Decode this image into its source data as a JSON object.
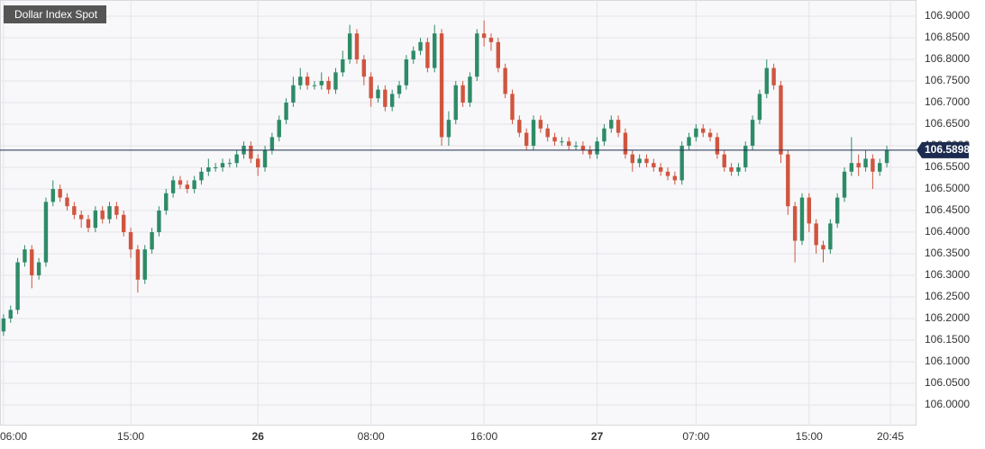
{
  "chart_data": {
    "type": "candlestick",
    "series": [
      {
        "name": "Dollar Index Spot",
        "up_color": "#2e8b68",
        "down_color": "#d0553f",
        "open": [
          106.17,
          106.2,
          106.22,
          106.33,
          106.36,
          106.3,
          106.33,
          106.47,
          106.5,
          106.48,
          106.46,
          106.44,
          106.43,
          106.41,
          106.45,
          106.43,
          106.46,
          106.44,
          106.4,
          106.36,
          106.29,
          106.36,
          106.4,
          106.45,
          106.49,
          106.52,
          106.51,
          106.5,
          106.52,
          106.54,
          106.55,
          106.55,
          106.56,
          106.56,
          106.58,
          106.6,
          106.57,
          106.55,
          106.59,
          106.62,
          106.66,
          106.7,
          106.74,
          106.76,
          106.74,
          106.74,
          106.75,
          106.73,
          106.77,
          106.8,
          106.86,
          106.8,
          106.76,
          106.71,
          106.73,
          106.69,
          106.72,
          106.74,
          106.8,
          106.82,
          106.84,
          106.78,
          106.86,
          106.62,
          106.66,
          106.74,
          106.7,
          106.76,
          106.86,
          106.85,
          106.84,
          106.78,
          106.72,
          106.66,
          106.63,
          106.6,
          106.66,
          106.64,
          106.62,
          106.61,
          106.61,
          106.6,
          106.6,
          106.59,
          106.58,
          106.61,
          106.64,
          106.66,
          106.63,
          106.58,
          106.56,
          106.57,
          106.56,
          106.55,
          106.54,
          106.53,
          106.52,
          106.6,
          106.62,
          106.64,
          106.63,
          106.62,
          106.58,
          106.55,
          106.54,
          106.55,
          106.6,
          106.66,
          106.72,
          106.78,
          106.74,
          106.58,
          106.46,
          106.38,
          106.48,
          106.42,
          106.37,
          106.36,
          106.42,
          106.48,
          106.54,
          106.56,
          106.55,
          106.57,
          106.54,
          106.56
        ],
        "high": [
          106.21,
          106.23,
          106.34,
          106.37,
          106.37,
          106.34,
          106.48,
          106.52,
          106.51,
          106.49,
          106.47,
          106.45,
          106.44,
          106.46,
          106.46,
          106.47,
          106.47,
          106.45,
          106.41,
          106.37,
          106.37,
          106.41,
          106.46,
          106.5,
          106.53,
          106.53,
          106.52,
          106.53,
          106.55,
          106.57,
          106.56,
          106.57,
          106.57,
          106.59,
          106.61,
          106.61,
          106.58,
          106.6,
          106.63,
          106.67,
          106.71,
          106.76,
          106.78,
          106.77,
          106.75,
          106.77,
          106.76,
          106.78,
          106.82,
          106.88,
          106.87,
          106.81,
          106.77,
          106.74,
          106.74,
          106.73,
          106.75,
          106.81,
          106.83,
          106.85,
          106.85,
          106.88,
          106.87,
          106.68,
          106.75,
          106.75,
          106.77,
          106.87,
          106.89,
          106.86,
          106.85,
          106.79,
          106.73,
          106.67,
          106.64,
          106.67,
          106.67,
          106.65,
          106.63,
          106.62,
          106.62,
          106.61,
          106.61,
          106.6,
          106.62,
          106.65,
          106.67,
          106.67,
          106.64,
          106.59,
          106.58,
          106.58,
          106.57,
          106.56,
          106.55,
          106.54,
          106.61,
          106.63,
          106.65,
          106.65,
          106.64,
          106.63,
          106.59,
          106.56,
          106.56,
          106.61,
          106.67,
          106.73,
          106.8,
          106.79,
          106.75,
          106.59,
          106.47,
          106.49,
          106.49,
          106.43,
          106.38,
          106.43,
          106.49,
          106.55,
          106.62,
          106.58,
          106.59,
          106.58,
          106.57,
          106.6
        ],
        "low": [
          106.16,
          106.19,
          106.21,
          106.32,
          106.27,
          106.29,
          106.32,
          106.46,
          106.47,
          106.45,
          106.43,
          106.41,
          106.4,
          106.4,
          106.42,
          106.42,
          106.43,
          106.39,
          106.34,
          106.26,
          106.28,
          106.35,
          106.39,
          106.44,
          106.48,
          106.5,
          106.49,
          106.49,
          106.51,
          106.53,
          106.54,
          106.54,
          106.55,
          106.55,
          106.57,
          106.56,
          106.53,
          106.54,
          106.58,
          106.61,
          106.65,
          106.69,
          106.73,
          106.73,
          106.73,
          106.73,
          106.72,
          106.72,
          106.76,
          106.79,
          106.79,
          106.74,
          106.69,
          106.7,
          106.68,
          106.68,
          106.71,
          106.73,
          106.79,
          106.81,
          106.77,
          106.77,
          106.6,
          106.6,
          106.65,
          106.69,
          106.69,
          106.75,
          106.83,
          106.82,
          106.77,
          106.71,
          106.65,
          106.62,
          106.59,
          106.59,
          106.63,
          106.61,
          106.6,
          106.6,
          106.59,
          106.59,
          106.58,
          106.57,
          106.57,
          106.6,
          106.63,
          106.62,
          106.57,
          106.54,
          106.55,
          106.55,
          106.54,
          106.53,
          106.52,
          106.51,
          106.51,
          106.59,
          106.61,
          106.62,
          106.61,
          106.57,
          106.54,
          106.53,
          106.53,
          106.54,
          106.59,
          106.65,
          106.71,
          106.73,
          106.56,
          106.44,
          106.33,
          106.37,
          106.4,
          106.35,
          106.33,
          106.35,
          106.41,
          106.47,
          106.53,
          106.53,
          106.54,
          106.5,
          106.53,
          106.55
        ],
        "close": [
          106.2,
          106.22,
          106.33,
          106.36,
          106.3,
          106.33,
          106.47,
          106.5,
          106.48,
          106.46,
          106.44,
          106.43,
          106.41,
          106.45,
          106.43,
          106.46,
          106.44,
          106.4,
          106.36,
          106.29,
          106.36,
          106.4,
          106.45,
          106.49,
          106.52,
          106.51,
          106.5,
          106.52,
          106.54,
          106.55,
          106.55,
          106.56,
          106.56,
          106.58,
          106.6,
          106.57,
          106.55,
          106.59,
          106.62,
          106.66,
          106.7,
          106.74,
          106.76,
          106.74,
          106.74,
          106.75,
          106.73,
          106.77,
          106.8,
          106.86,
          106.8,
          106.76,
          106.71,
          106.73,
          106.69,
          106.72,
          106.74,
          106.8,
          106.82,
          106.84,
          106.78,
          106.86,
          106.62,
          106.66,
          106.74,
          106.7,
          106.76,
          106.86,
          106.85,
          106.84,
          106.78,
          106.72,
          106.66,
          106.63,
          106.6,
          106.66,
          106.64,
          106.62,
          106.61,
          106.61,
          106.6,
          106.6,
          106.59,
          106.58,
          106.61,
          106.64,
          106.66,
          106.63,
          106.58,
          106.56,
          106.57,
          106.56,
          106.55,
          106.54,
          106.53,
          106.52,
          106.6,
          106.62,
          106.64,
          106.63,
          106.62,
          106.58,
          106.55,
          106.54,
          106.55,
          106.6,
          106.66,
          106.72,
          106.78,
          106.74,
          106.58,
          106.46,
          106.38,
          106.48,
          106.42,
          106.37,
          106.36,
          106.42,
          106.48,
          106.54,
          106.56,
          106.55,
          106.57,
          106.54,
          106.56,
          106.5898
        ]
      }
    ],
    "x": [
      0,
      0.5,
      1,
      1.5,
      2,
      2.5,
      3,
      3.5,
      4,
      4.5,
      5,
      5.5,
      6,
      6.5,
      7,
      7.5,
      8,
      8.5,
      9,
      9.5,
      10,
      10.5,
      11,
      11.5,
      12,
      12.5,
      13,
      13.5,
      14,
      14.5,
      15,
      15.5,
      16,
      16.5,
      17,
      17.5,
      18,
      18.5,
      19,
      19.5,
      20,
      20.5,
      21,
      21.5,
      22,
      22.5,
      23,
      23.5,
      24,
      24.5,
      25,
      25.5,
      26,
      26.5,
      27,
      27.5,
      28,
      28.5,
      29,
      29.5,
      30,
      30.5,
      31,
      31.5,
      32,
      32.5,
      33,
      33.5,
      34,
      34.5,
      35,
      35.5,
      36,
      36.5,
      37,
      37.5,
      38,
      38.5,
      39,
      39.5,
      40,
      40.5,
      41,
      41.5,
      42,
      42.5,
      43,
      43.5,
      44,
      44.5,
      45,
      45.5,
      46,
      46.5,
      47,
      47.5,
      48,
      48.5,
      49,
      49.5,
      50,
      50.5,
      51,
      51.5,
      52,
      52.5,
      53,
      53.5,
      54,
      54.5,
      55,
      55.5,
      56,
      56.5,
      57,
      57.5,
      58,
      58.5,
      59,
      59.5,
      60,
      60.5,
      61,
      61.5,
      62,
      62.5
    ],
    "xlim": [
      -0.25,
      64.6
    ],
    "xticks": [
      {
        "value": 0,
        "label": "06:00"
      },
      {
        "value": 9,
        "label": "15:00"
      },
      {
        "value": 18,
        "label": "26"
      },
      {
        "value": 26,
        "label": "08:00"
      },
      {
        "value": 34,
        "label": "16:00"
      },
      {
        "value": 42,
        "label": "27"
      },
      {
        "value": 49,
        "label": "07:00"
      },
      {
        "value": 57,
        "label": "15:00"
      },
      {
        "value": 62.75,
        "label": "20:45"
      }
    ],
    "ylim": [
      105.952,
      106.9375
    ],
    "yticks": [
      {
        "value": 106.0,
        "label": "106.0000"
      },
      {
        "value": 106.05,
        "label": "106.0500"
      },
      {
        "value": 106.1,
        "label": "106.1000"
      },
      {
        "value": 106.15,
        "label": "106.1500"
      },
      {
        "value": 106.2,
        "label": "106.2000"
      },
      {
        "value": 106.25,
        "label": "106.2500"
      },
      {
        "value": 106.3,
        "label": "106.3000"
      },
      {
        "value": 106.35,
        "label": "106.3500"
      },
      {
        "value": 106.4,
        "label": "106.4000"
      },
      {
        "value": 106.45,
        "label": "106.4500"
      },
      {
        "value": 106.5,
        "label": "106.5000"
      },
      {
        "value": 106.55,
        "label": "106.5500"
      },
      {
        "value": 106.6,
        "label": "106.6000"
      },
      {
        "value": 106.65,
        "label": "106.6500"
      },
      {
        "value": 106.7,
        "label": "106.7000"
      },
      {
        "value": 106.75,
        "label": "106.7500"
      },
      {
        "value": 106.8,
        "label": "106.8000"
      },
      {
        "value": 106.85,
        "label": "106.8500"
      },
      {
        "value": 106.9,
        "label": "106.9000"
      }
    ],
    "last_price": 106.5898,
    "last_price_color": "#1c2b4f",
    "grid": true
  }
}
